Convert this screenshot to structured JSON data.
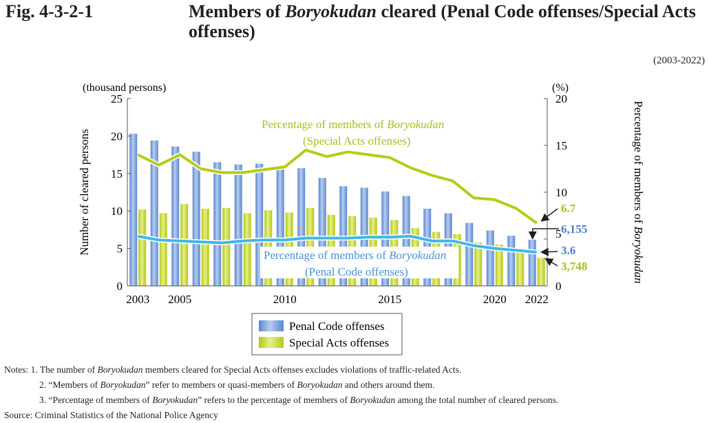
{
  "title": {
    "fig": "Fig. 4-3-2-1",
    "text": "Members of Boryokudan cleared (Penal Code offenses/Special Acts offenses)"
  },
  "period": "(2003-2022)",
  "chart_data": {
    "type": "bar",
    "categories": [
      2003,
      2004,
      2005,
      2006,
      2007,
      2008,
      2009,
      2010,
      2011,
      2012,
      2013,
      2014,
      2015,
      2016,
      2017,
      2018,
      2019,
      2020,
      2021,
      2022
    ],
    "x_tick_labels": [
      "2003",
      "2005",
      "2010",
      "2015",
      "2020",
      "2022"
    ],
    "left_axis": {
      "label": "Number of cleared persons",
      "unit": "(thousand persons)",
      "range": [
        0,
        25
      ],
      "ticks": [
        0,
        5,
        10,
        15,
        20,
        25
      ]
    },
    "right_axis": {
      "label": "Percentage of members of Boryokudan",
      "unit": "(%)",
      "range": [
        0,
        20
      ],
      "ticks": [
        0,
        5,
        10,
        15,
        20
      ]
    },
    "series": [
      {
        "name": "Penal Code offenses",
        "type": "bar",
        "axis": "left",
        "color": "#7aa3dc",
        "values": [
          20.3,
          19.4,
          18.6,
          17.9,
          16.5,
          16.2,
          16.3,
          15.6,
          15.7,
          14.4,
          13.3,
          13.1,
          12.6,
          12.0,
          10.3,
          9.7,
          8.4,
          7.4,
          6.7,
          6.155
        ]
      },
      {
        "name": "Special Acts offenses",
        "type": "bar",
        "axis": "left",
        "color": "#c8d92b",
        "values": [
          10.2,
          9.7,
          10.9,
          10.3,
          10.4,
          9.7,
          10.1,
          9.8,
          10.4,
          9.5,
          9.3,
          9.1,
          8.8,
          7.7,
          7.2,
          6.9,
          5.8,
          5.5,
          4.8,
          3.748
        ]
      },
      {
        "name": "Percentage of members of Boryokudan (Special Acts offenses)",
        "type": "line",
        "axis": "right",
        "color": "#b5cc16",
        "values": [
          14.0,
          12.9,
          14.0,
          12.5,
          12.1,
          12.1,
          12.4,
          12.7,
          14.5,
          13.8,
          14.3,
          14.0,
          13.7,
          12.6,
          11.8,
          11.2,
          9.4,
          9.2,
          8.3,
          6.7
        ]
      },
      {
        "name": "Percentage of members of Boryokudan (Penal Code offenses)",
        "type": "line",
        "axis": "right",
        "color": "#3fb6ea",
        "values": [
          5.3,
          4.9,
          4.8,
          4.7,
          4.6,
          4.8,
          4.9,
          4.9,
          5.1,
          5.1,
          5.1,
          5.2,
          5.2,
          5.3,
          4.8,
          4.8,
          4.3,
          4.0,
          3.8,
          3.6
        ]
      }
    ],
    "line_labels": {
      "special": [
        "Percentage of members of Boryokudan",
        "(Special Acts offenses)"
      ],
      "penal": [
        "Percentage of members of Boryokudan",
        "(Penal Code offenses)"
      ]
    },
    "annotations": {
      "special_pct": "6.7",
      "penal_count": "6,155",
      "penal_pct": "3.6",
      "special_count": "3,748"
    },
    "legend": {
      "placement": "bottom",
      "items": [
        "Penal Code offenses",
        "Special Acts offenses"
      ]
    }
  },
  "notes": [
    "Notes: 1. The number of Boryokudan members cleared for Special Acts offenses excludes violations of traffic-related Acts.",
    "2. “Members of Boryokudan” refer to members or quasi-members of Boryokudan and others around them.",
    "3. “Percentage of members of Boryokudan” refers to the percentage of members of Boryokudan among the total number of cleared persons."
  ],
  "source": "Source: Criminal Statistics of the National Police Agency"
}
